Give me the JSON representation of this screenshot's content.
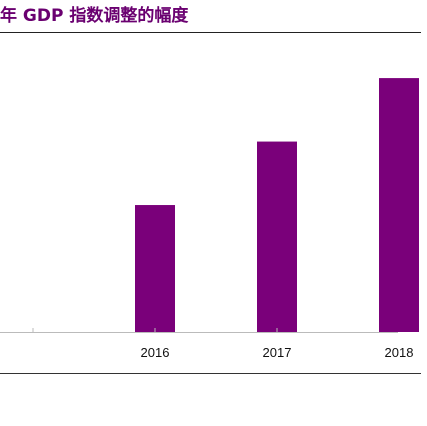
{
  "title": "年 GDP 指数调整的幅度",
  "colors": {
    "title": "#6a0070",
    "bar": "#7a007a",
    "axis": "#bbbbbb",
    "tick_label": "#111111"
  },
  "chart_data": {
    "type": "bar",
    "title": "年 GDP 指数调整的幅度",
    "categories": [
      "2016",
      "2017",
      "2018"
    ],
    "values": [
      1.0,
      1.5,
      2.0
    ],
    "ylim": [
      0,
      2.3
    ],
    "xlabel": "",
    "ylabel": "",
    "grid": false,
    "legend": "none"
  }
}
